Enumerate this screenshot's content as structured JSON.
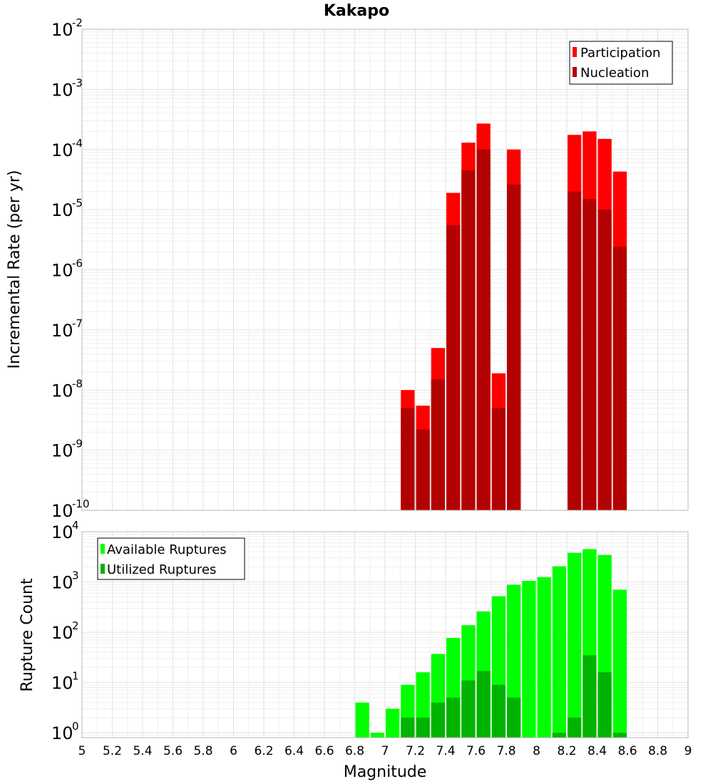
{
  "title": "Kakapo",
  "chart_data": [
    {
      "type": "bar",
      "ylabel": "Incremental Rate (per yr)",
      "xlabel": "",
      "yscale": "log",
      "ylim": [
        1e-10,
        0.01
      ],
      "xlim": [
        5,
        9
      ],
      "bin_width": 0.1,
      "legend": {
        "placement": "top-right",
        "entries": [
          "Participation",
          "Nucleation"
        ]
      },
      "colors": {
        "Participation": "#ff0000",
        "Nucleation": "#b30000"
      },
      "series": [
        {
          "name": "Participation",
          "x": [
            7.15,
            7.25,
            7.35,
            7.45,
            7.55,
            7.65,
            7.75,
            7.85,
            8.25,
            8.35,
            8.45,
            8.55
          ],
          "values": [
            1e-08,
            5.5e-09,
            5e-08,
            1.9e-05,
            0.00013,
            0.00027,
            1.9e-08,
            0.0001,
            0.000175,
            0.0002,
            0.00015,
            4.3e-05
          ]
        },
        {
          "name": "Nucleation",
          "x": [
            7.15,
            7.25,
            7.35,
            7.45,
            7.55,
            7.65,
            7.75,
            7.85,
            8.25,
            8.35,
            8.45,
            8.55
          ],
          "values": [
            5e-09,
            2.2e-09,
            1.5e-08,
            5.5e-06,
            4.5e-05,
            0.0001,
            5e-09,
            2.6e-05,
            2e-05,
            1.5e-05,
            1e-05,
            2.4e-06
          ]
        }
      ],
      "yticks": [
        {
          "value": 0.01,
          "base": "10",
          "exp": "-2"
        },
        {
          "value": 0.001,
          "base": "10",
          "exp": "-3"
        },
        {
          "value": 0.0001,
          "base": "10",
          "exp": "-4"
        },
        {
          "value": 1e-05,
          "base": "10",
          "exp": "-5"
        },
        {
          "value": 1e-06,
          "base": "10",
          "exp": "-6"
        },
        {
          "value": 1e-07,
          "base": "10",
          "exp": "-7"
        },
        {
          "value": 1e-08,
          "base": "10",
          "exp": "-8"
        },
        {
          "value": 1e-09,
          "base": "10",
          "exp": "-9"
        },
        {
          "value": 1e-10,
          "base": "10",
          "exp": "-10"
        }
      ],
      "grid": true
    },
    {
      "type": "bar",
      "ylabel": "Rupture Count",
      "xlabel": "Magnitude",
      "yscale": "log",
      "ylim": [
        0.8,
        10000
      ],
      "xlim": [
        5,
        9
      ],
      "bin_width": 0.1,
      "legend": {
        "placement": "top-left",
        "entries": [
          "Available Ruptures",
          "Utilized Ruptures"
        ]
      },
      "colors": {
        "Available Ruptures": "#00ff00",
        "Utilized Ruptures": "#00b300"
      },
      "series": [
        {
          "name": "Available Ruptures",
          "x": [
            6.85,
            6.95,
            7.05,
            7.15,
            7.25,
            7.35,
            7.45,
            7.55,
            7.65,
            7.75,
            7.85,
            7.95,
            8.05,
            8.15,
            8.25,
            8.35,
            8.45,
            8.55
          ],
          "values": [
            4,
            1,
            3,
            9,
            16,
            37,
            77,
            138,
            260,
            520,
            880,
            1050,
            1250,
            2050,
            3800,
            4500,
            3450,
            700
          ]
        },
        {
          "name": "Utilized Ruptures",
          "x": [
            7.15,
            7.25,
            7.35,
            7.45,
            7.55,
            7.65,
            7.75,
            7.85,
            8.15,
            8.25,
            8.35,
            8.45,
            8.55
          ],
          "values": [
            2,
            2,
            4,
            5,
            11,
            17,
            9,
            5,
            1,
            2,
            35,
            16,
            1
          ]
        }
      ],
      "yticks": [
        {
          "value": 10000,
          "base": "10",
          "exp": "4"
        },
        {
          "value": 1000,
          "base": "10",
          "exp": "3"
        },
        {
          "value": 100,
          "base": "10",
          "exp": "2"
        },
        {
          "value": 10,
          "base": "10",
          "exp": "1"
        },
        {
          "value": 1,
          "base": "10",
          "exp": "0"
        }
      ],
      "xticks": [
        "5",
        "5.2",
        "5.4",
        "5.6",
        "5.8",
        "6",
        "6.2",
        "6.4",
        "6.6",
        "6.8",
        "7",
        "7.2",
        "7.4",
        "7.6",
        "7.8",
        "8",
        "8.2",
        "8.4",
        "8.6",
        "8.8",
        "9"
      ],
      "grid": true
    }
  ]
}
